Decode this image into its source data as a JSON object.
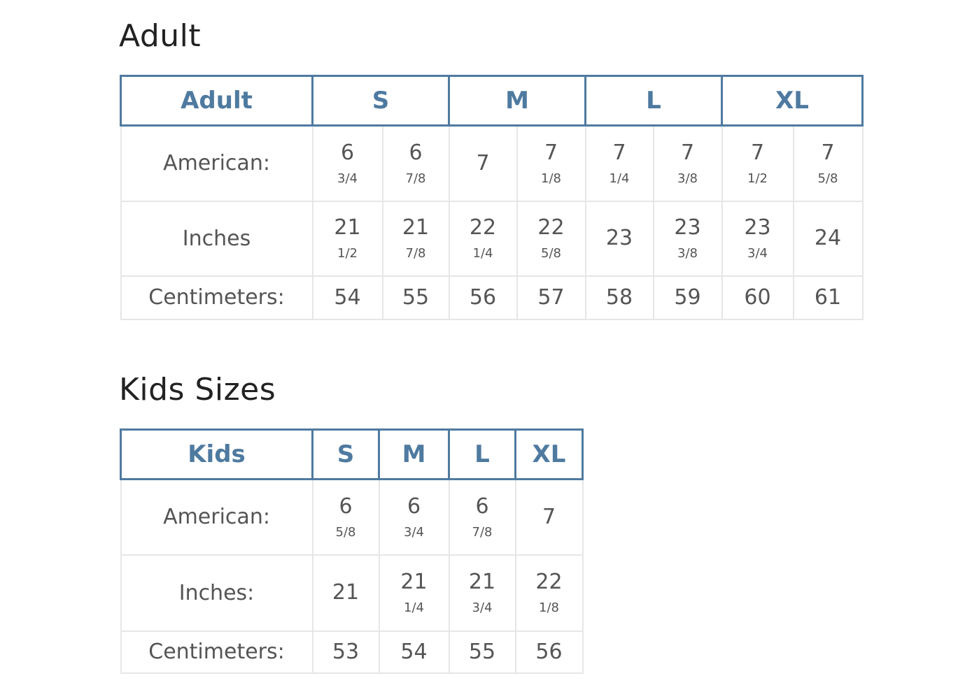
{
  "adult": {
    "heading": "Adult",
    "header": [
      "Adult",
      "S",
      "M",
      "L",
      "XL"
    ],
    "rows": [
      {
        "label": "American:",
        "cells": [
          {
            "w": "6",
            "f": "3/4"
          },
          {
            "w": "6",
            "f": "7/8"
          },
          {
            "w": "7",
            "f": ""
          },
          {
            "w": "7",
            "f": "1/8"
          },
          {
            "w": "7",
            "f": "1/4"
          },
          {
            "w": "7",
            "f": "3/8"
          },
          {
            "w": "7",
            "f": "1/2"
          },
          {
            "w": "7",
            "f": "5/8"
          }
        ]
      },
      {
        "label": "Inches",
        "cells": [
          {
            "w": "21",
            "f": "1/2"
          },
          {
            "w": "21",
            "f": "7/8"
          },
          {
            "w": "22",
            "f": "1/4"
          },
          {
            "w": "22",
            "f": "5/8"
          },
          {
            "w": "23",
            "f": ""
          },
          {
            "w": "23",
            "f": "3/8"
          },
          {
            "w": "23",
            "f": "3/4"
          },
          {
            "w": "24",
            "f": ""
          }
        ]
      },
      {
        "label": "Centimeters:",
        "cells": [
          {
            "w": "54",
            "f": ""
          },
          {
            "w": "55",
            "f": ""
          },
          {
            "w": "56",
            "f": ""
          },
          {
            "w": "57",
            "f": ""
          },
          {
            "w": "58",
            "f": ""
          },
          {
            "w": "59",
            "f": ""
          },
          {
            "w": "60",
            "f": ""
          },
          {
            "w": "61",
            "f": ""
          }
        ]
      }
    ]
  },
  "kids": {
    "heading": "Kids Sizes",
    "header": [
      "Kids",
      "S",
      "M",
      "L",
      "XL"
    ],
    "rows": [
      {
        "label": "American:",
        "cells": [
          {
            "w": "6",
            "f": "5/8"
          },
          {
            "w": "6",
            "f": "3/4"
          },
          {
            "w": "6",
            "f": "7/8"
          },
          {
            "w": "7",
            "f": ""
          }
        ]
      },
      {
        "label": "Inches:",
        "cells": [
          {
            "w": "21",
            "f": ""
          },
          {
            "w": "21",
            "f": "1/4"
          },
          {
            "w": "21",
            "f": "3/4"
          },
          {
            "w": "22",
            "f": "1/8"
          }
        ]
      },
      {
        "label": "Centimeters:",
        "cells": [
          {
            "w": "53",
            "f": ""
          },
          {
            "w": "54",
            "f": ""
          },
          {
            "w": "55",
            "f": ""
          },
          {
            "w": "56",
            "f": ""
          }
        ]
      }
    ]
  },
  "colors": {
    "header": "#4f7aa0",
    "border": "#e6e6e6"
  }
}
